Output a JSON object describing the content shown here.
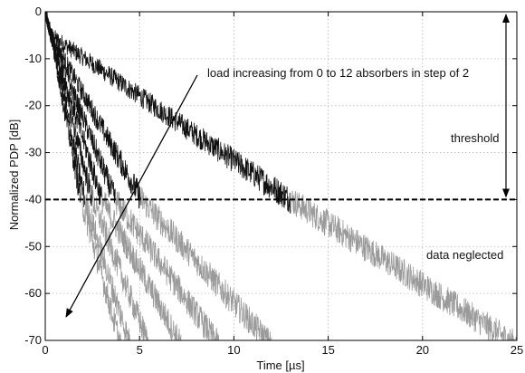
{
  "chart_data": {
    "type": "line",
    "xlabel": "Time [µs]",
    "ylabel": "Normalized PDP [dB]",
    "xlim": [
      0,
      25
    ],
    "ylim": [
      -70,
      0
    ],
    "xticks": [
      0,
      5,
      10,
      15,
      20,
      25
    ],
    "yticks": [
      0,
      -10,
      -20,
      -30,
      -40,
      -50,
      -60,
      -70
    ],
    "grid": true,
    "threshold_db": -40,
    "series": [
      {
        "absorbers": 0,
        "x": [
          0,
          0.3,
          13,
          25
        ],
        "y": [
          0,
          -5,
          -40,
          -71
        ]
      },
      {
        "absorbers": 2,
        "x": [
          0,
          0.3,
          5.1,
          12
        ],
        "y": [
          0,
          -5,
          -40,
          -71
        ]
      },
      {
        "absorbers": 4,
        "x": [
          0,
          0.3,
          3.7,
          9.2
        ],
        "y": [
          0,
          -5,
          -40,
          -71
        ]
      },
      {
        "absorbers": 6,
        "x": [
          0,
          0.3,
          3.0,
          7.2
        ],
        "y": [
          0,
          -5,
          -40,
          -71
        ]
      },
      {
        "absorbers": 8,
        "x": [
          0,
          0.3,
          2.5,
          5.5
        ],
        "y": [
          0,
          -5,
          -40,
          -71
        ]
      },
      {
        "absorbers": 10,
        "x": [
          0,
          0.3,
          2.1,
          4.5
        ],
        "y": [
          0,
          -5,
          -40,
          -71
        ]
      },
      {
        "absorbers": 12,
        "x": [
          0,
          0.3,
          1.9,
          4.0
        ],
        "y": [
          0,
          -5,
          -40,
          -71
        ]
      }
    ],
    "colors": {
      "above_threshold": "#111111",
      "below_threshold": "#9a9a9a",
      "threshold_line": "#000000",
      "grid": "#b8b8b8"
    },
    "annotations": {
      "load": "load increasing from 0 to 12 absorbers in step of 2",
      "threshold": "threshold",
      "neglected": "data neglected"
    }
  }
}
